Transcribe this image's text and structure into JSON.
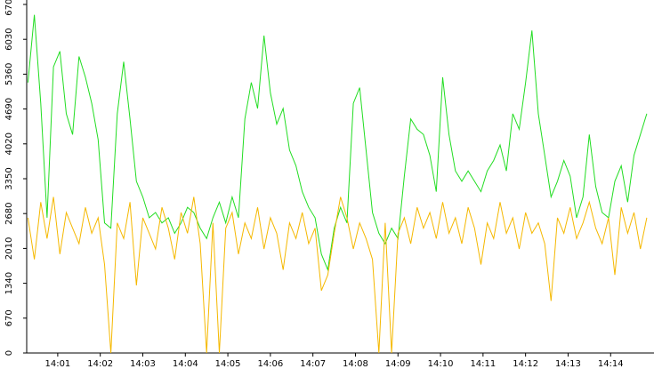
{
  "chart_data": {
    "type": "line",
    "x": [
      0.3,
      0.45,
      0.6,
      0.75,
      0.9,
      1.05,
      1.2,
      1.35,
      1.5,
      1.65,
      1.8,
      1.95,
      2.1,
      2.25,
      2.4,
      2.55,
      2.7,
      2.85,
      3.0,
      3.15,
      3.3,
      3.45,
      3.6,
      3.75,
      3.9,
      4.05,
      4.2,
      4.35,
      4.5,
      4.65,
      4.8,
      4.95,
      5.1,
      5.25,
      5.4,
      5.55,
      5.7,
      5.85,
      6.0,
      6.15,
      6.3,
      6.45,
      6.6,
      6.75,
      6.9,
      7.05,
      7.2,
      7.35,
      7.5,
      7.65,
      7.8,
      7.95,
      8.1,
      8.25,
      8.4,
      8.55,
      8.7,
      8.85,
      9.0,
      9.15,
      9.3,
      9.45,
      9.6,
      9.75,
      9.9,
      10.05,
      10.2,
      10.35,
      10.5,
      10.65,
      10.8,
      10.95,
      11.1,
      11.25,
      11.4,
      11.55,
      11.7,
      11.85,
      12.0,
      12.15,
      12.3,
      12.45,
      12.6,
      12.75,
      12.9,
      13.05,
      13.2,
      13.35,
      13.5,
      13.65,
      13.8,
      13.95,
      14.1,
      14.25,
      14.4,
      14.55,
      14.7,
      14.85
    ],
    "series": [
      {
        "color": "#22dd22",
        "values": [
          5200,
          6500,
          4800,
          2600,
          5500,
          5800,
          4600,
          4200,
          5700,
          5300,
          4800,
          4100,
          2500,
          2400,
          4600,
          5600,
          4500,
          3300,
          3000,
          2600,
          2700,
          2500,
          2600,
          2300,
          2500,
          2800,
          2700,
          2400,
          2200,
          2600,
          2900,
          2500,
          3000,
          2600,
          4500,
          5200,
          4700,
          6100,
          5000,
          4400,
          4700,
          3900,
          3600,
          3100,
          2800,
          2600,
          1900,
          1600,
          2400,
          2800,
          2500,
          4800,
          5100,
          3900,
          2700,
          2300,
          2100,
          2400,
          2200,
          3400,
          4500,
          4300,
          4200,
          3800,
          3100,
          5300,
          4200,
          3500,
          3300,
          3500,
          3300,
          3100,
          3500,
          3700,
          4000,
          3500,
          4600,
          4300,
          5200,
          6200,
          4600,
          3800,
          3000,
          3300,
          3700,
          3400,
          2600,
          3000,
          4200,
          3200,
          2700,
          2600,
          3300,
          3600,
          2900,
          3800,
          4200,
          4600
        ]
      },
      {
        "color": "#f5b800",
        "values": [
          2600,
          1800,
          2900,
          2200,
          3000,
          1900,
          2700,
          2400,
          2100,
          2800,
          2300,
          2600,
          1700,
          0,
          2500,
          2200,
          2900,
          1300,
          2600,
          2300,
          2000,
          2800,
          2400,
          1800,
          2700,
          2300,
          3000,
          2100,
          0,
          2500,
          0,
          2400,
          2700,
          1900,
          2500,
          2200,
          2800,
          2000,
          2600,
          2300,
          1600,
          2500,
          2200,
          2700,
          2100,
          2400,
          1200,
          1500,
          2300,
          3000,
          2600,
          2000,
          2500,
          2200,
          1800,
          0,
          2500,
          0,
          2300,
          2600,
          2100,
          2800,
          2400,
          2700,
          2200,
          2900,
          2300,
          2600,
          2100,
          2800,
          2400,
          1700,
          2500,
          2200,
          2900,
          2300,
          2600,
          2000,
          2700,
          2300,
          2500,
          2100,
          1000,
          2600,
          2300,
          2800,
          2200,
          2500,
          2900,
          2400,
          2100,
          2600,
          1500,
          2800,
          2300,
          2700,
          2000,
          2600
        ]
      }
    ],
    "xlim": [
      0.27,
      15.02
    ],
    "xticks": [
      {
        "value": 1,
        "label": "14:01"
      },
      {
        "value": 2,
        "label": "14:02"
      },
      {
        "value": 3,
        "label": "14:03"
      },
      {
        "value": 4,
        "label": "14:04"
      },
      {
        "value": 5,
        "label": "14:05"
      },
      {
        "value": 6,
        "label": "14:06"
      },
      {
        "value": 7,
        "label": "14:07"
      },
      {
        "value": 8,
        "label": "14:08"
      },
      {
        "value": 9,
        "label": "14:09"
      },
      {
        "value": 10,
        "label": "14:10"
      },
      {
        "value": 11,
        "label": "14:11"
      },
      {
        "value": 12,
        "label": "14:12"
      },
      {
        "value": 13,
        "label": "14:13"
      },
      {
        "value": 14,
        "label": "14:14"
      }
    ],
    "ylim": [
      0,
      6700
    ],
    "yticks": [
      0,
      670,
      1340,
      2010,
      2680,
      3350,
      4020,
      4690,
      5360,
      6030,
      6700
    ]
  }
}
